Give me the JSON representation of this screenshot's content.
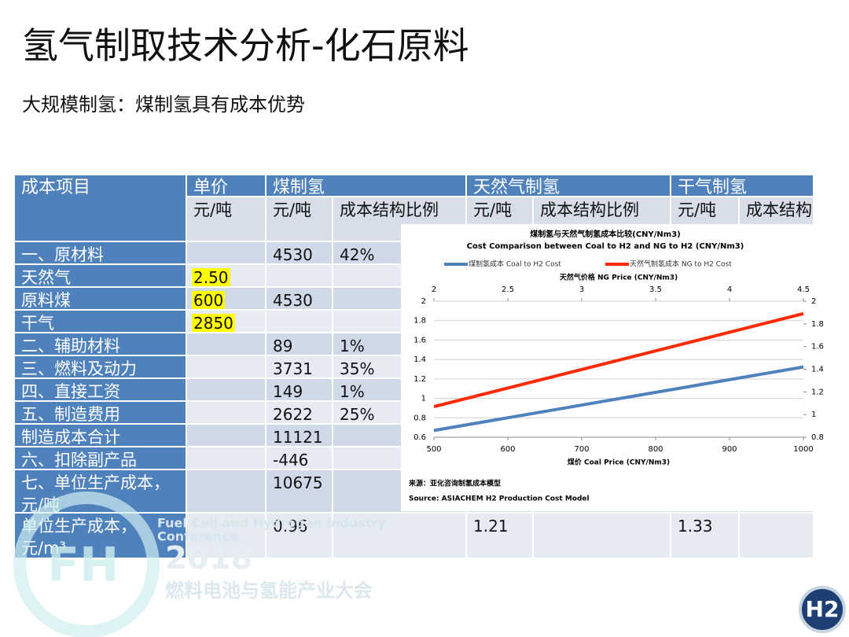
{
  "header": {
    "title": "氢气制取技术分析-化石原料",
    "subtitle": "大规模制氢：煤制氢具有成本优势"
  },
  "table": {
    "header": [
      "成本项目",
      "单价",
      "煤制氢",
      "天然气制氢",
      "干气制氢"
    ],
    "units": [
      "元/吨",
      "元/吨",
      "成本结构比例",
      "元/吨",
      "成本结构比例",
      "元/吨",
      "成本结构比例"
    ],
    "highlight": "#ffff00",
    "rows": [
      [
        "一、原材料",
        null,
        "4530",
        "42%",
        null,
        null,
        null,
        null
      ],
      [
        "天然气",
        "2.50",
        null,
        null,
        null,
        null,
        null,
        null
      ],
      [
        "原料煤",
        "600",
        "4530",
        null,
        null,
        null,
        null,
        null
      ],
      [
        "干气",
        "2850",
        null,
        null,
        null,
        null,
        null,
        null
      ],
      [
        "二、辅助材料",
        null,
        "89",
        "1%",
        null,
        null,
        null,
        null
      ],
      [
        "三、燃料及动力",
        null,
        "3731",
        "35%",
        null,
        null,
        null,
        null
      ],
      [
        "四、直接工资",
        null,
        "149",
        "1%",
        null,
        null,
        null,
        null
      ],
      [
        "五、制造费用",
        null,
        "2622",
        "25%",
        null,
        null,
        null,
        null
      ],
      [
        "制造成本合计",
        null,
        "11121",
        null,
        null,
        null,
        null,
        null
      ],
      [
        "六、扣除副产品",
        null,
        "-446",
        null,
        null,
        null,
        null,
        null
      ],
      [
        "七、单位生产成本，元/吨",
        null,
        "10675",
        null,
        null,
        null,
        null,
        null
      ],
      [
        "单位生产成本，元/m³",
        null,
        "0.96",
        null,
        "1.21",
        null,
        "1.33",
        null
      ]
    ]
  },
  "chart_data": {
    "type": "line",
    "title": "煤制氢与天然气制氢成本比较(CNY/Nm3)",
    "subtitle": "Cost Comparison between Coal to H2 and NG to H2 (CNY/Nm3)",
    "xlabel": "煤价 Coal Price (CNY/Nm3)",
    "x2label": "天然气价格 NG Price (CNY/Nm3)",
    "xlim": [
      500,
      1000
    ],
    "xticks": [
      500,
      600,
      700,
      800,
      900,
      1000
    ],
    "x2lim": [
      2,
      4.5
    ],
    "x2ticks": [
      2,
      2.5,
      3,
      3.5,
      4,
      4.5
    ],
    "ylim": [
      0.6,
      2
    ],
    "yticks": [
      0.6,
      0.8,
      1,
      1.2,
      1.4,
      1.6,
      1.8,
      2
    ],
    "y2lim": [
      0.8,
      2
    ],
    "y2ticks": [
      0.8,
      1,
      1.2,
      1.4,
      1.6,
      1.8,
      2
    ],
    "grid": true,
    "series": [
      {
        "name": "煤制氢成本 Coal to H2 Cost",
        "color": "#4f81bd",
        "axis": "y2",
        "xaxis": "x",
        "x": [
          500,
          1000
        ],
        "values": [
          0.86,
          1.42
        ]
      },
      {
        "name": "天然气制氢成本 NG to H2 Cost",
        "color": "#ff2a00",
        "axis": "y2",
        "xaxis": "x2",
        "x": [
          2,
          4.5
        ],
        "values": [
          1.07,
          1.89
        ]
      }
    ],
    "source": [
      "来源：亚化咨询制氢成本模型",
      "Source: ASIACHEM H2 Production Cost Model"
    ]
  },
  "watermark": {
    "line1": "Fuel Cell and Hydrogen Industry",
    "line2": "Conference",
    "year": "2018",
    "cn": "燃料电池与氢能产业大会"
  },
  "logo": "H2"
}
